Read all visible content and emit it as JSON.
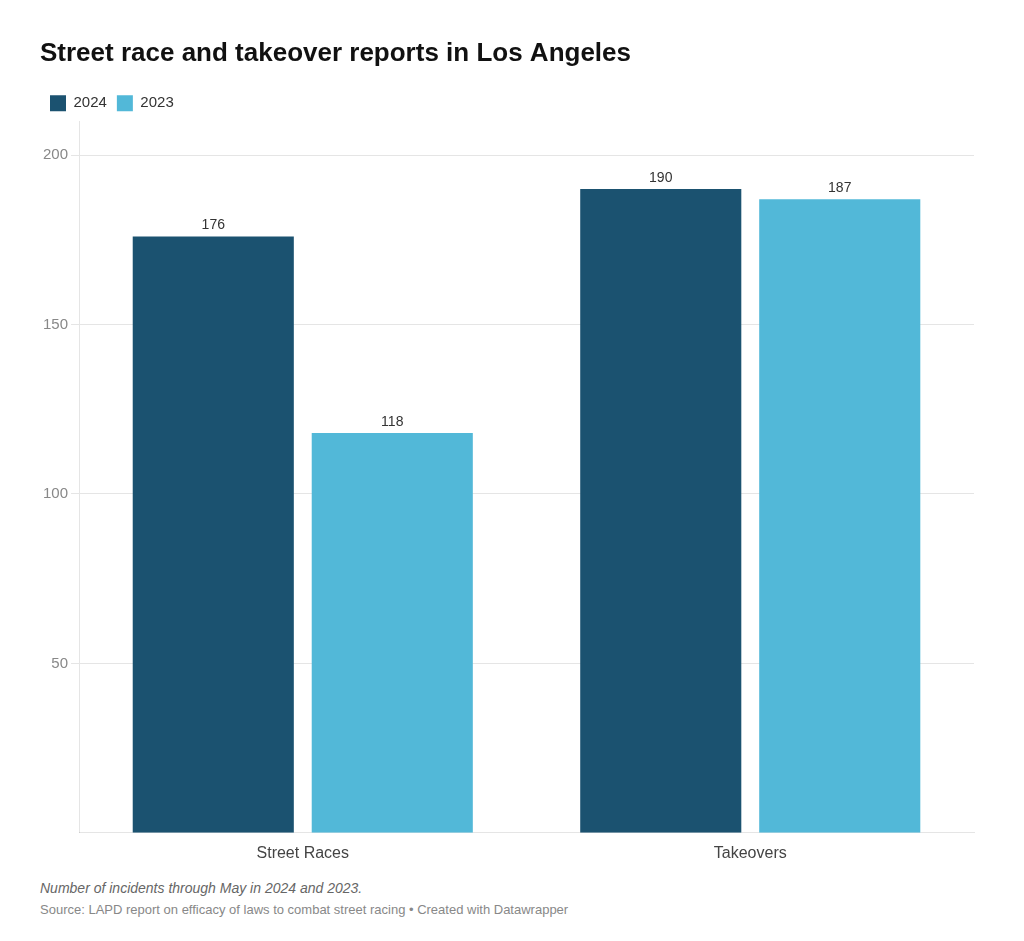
{
  "chart_data": {
    "type": "bar",
    "title": "Street race and takeover reports in Los Angeles",
    "subtitle": "Number of incidents through May in 2024 and 2023.",
    "source": "Source: LAPD report on efficacy of laws to combat street racing • Created with Datawrapper",
    "categories": [
      "Street Races",
      "Takeovers"
    ],
    "series": [
      {
        "name": "2024",
        "color": "#1b5270",
        "values": [
          176,
          190
        ]
      },
      {
        "name": "2023",
        "color": "#52b8d8",
        "values": [
          118,
          187
        ]
      }
    ],
    "ylim": [
      0,
      210
    ],
    "yticks": [
      50,
      100,
      150,
      200
    ],
    "grid": true,
    "legend": "upper left",
    "data_labels": true
  }
}
